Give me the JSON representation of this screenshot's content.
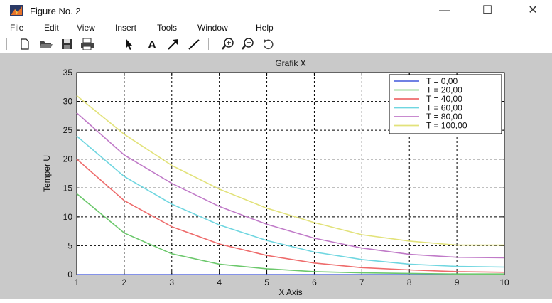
{
  "window": {
    "title": "Figure No. 2",
    "minimize": "—",
    "maximize": "☐",
    "close": "✕"
  },
  "menu": [
    "File",
    "Edit",
    "View",
    "Insert",
    "Tools",
    "Window",
    "Help"
  ],
  "toolbar_icons": [
    "new-icon",
    "open-icon",
    "save-icon",
    "print-icon",
    "select-arrow-icon",
    "insert-text-icon",
    "insert-arrow-icon",
    "insert-line-icon",
    "zoom-in-icon",
    "zoom-out-icon",
    "rotate-icon"
  ],
  "colors": {
    "figure_bg": "#c9c9c9",
    "axes_bg": "#ffffff"
  },
  "chart_data": {
    "type": "line",
    "title": "Grafik X",
    "xlabel": "X Axis",
    "ylabel": "Temper U",
    "xlim": [
      1,
      10
    ],
    "ylim": [
      0,
      35
    ],
    "xticks": [
      "1",
      "2",
      "3",
      "4",
      "5",
      "6",
      "7",
      "8",
      "9",
      "10"
    ],
    "yticks": [
      "0",
      "5",
      "10",
      "15",
      "20",
      "25",
      "30",
      "35"
    ],
    "grid": true,
    "legend_position": "top-right",
    "x": [
      1,
      2,
      3,
      4,
      5,
      6,
      7,
      8,
      9,
      10
    ],
    "series": [
      {
        "name": "T = 0,00",
        "color": "#5b6fe0",
        "values": [
          0,
          0,
          0,
          0,
          0,
          0,
          0,
          0,
          0,
          0
        ]
      },
      {
        "name": "T = 20,00",
        "color": "#6cc86c",
        "values": [
          14,
          7.2,
          3.6,
          1.8,
          1.0,
          0.5,
          0.3,
          0.2,
          0.1,
          0.1
        ]
      },
      {
        "name": "T = 40,00",
        "color": "#ee6b6b",
        "values": [
          20,
          12.8,
          8.3,
          5.3,
          3.3,
          2.0,
          1.2,
          0.8,
          0.5,
          0.4
        ]
      },
      {
        "name": "T = 60,00",
        "color": "#6fd6e0",
        "values": [
          24,
          17,
          12.2,
          8.6,
          5.9,
          3.9,
          2.6,
          1.8,
          1.4,
          1.3
        ]
      },
      {
        "name": "T = 80,00",
        "color": "#c07ac8",
        "values": [
          28,
          20.7,
          15.8,
          11.8,
          8.7,
          6.3,
          4.6,
          3.5,
          3.0,
          2.9
        ]
      },
      {
        "name": "T = 100,00",
        "color": "#e2e27a",
        "values": [
          31,
          24.3,
          18.9,
          14.8,
          11.5,
          9.0,
          6.9,
          5.8,
          5.1,
          5.1
        ]
      }
    ]
  }
}
